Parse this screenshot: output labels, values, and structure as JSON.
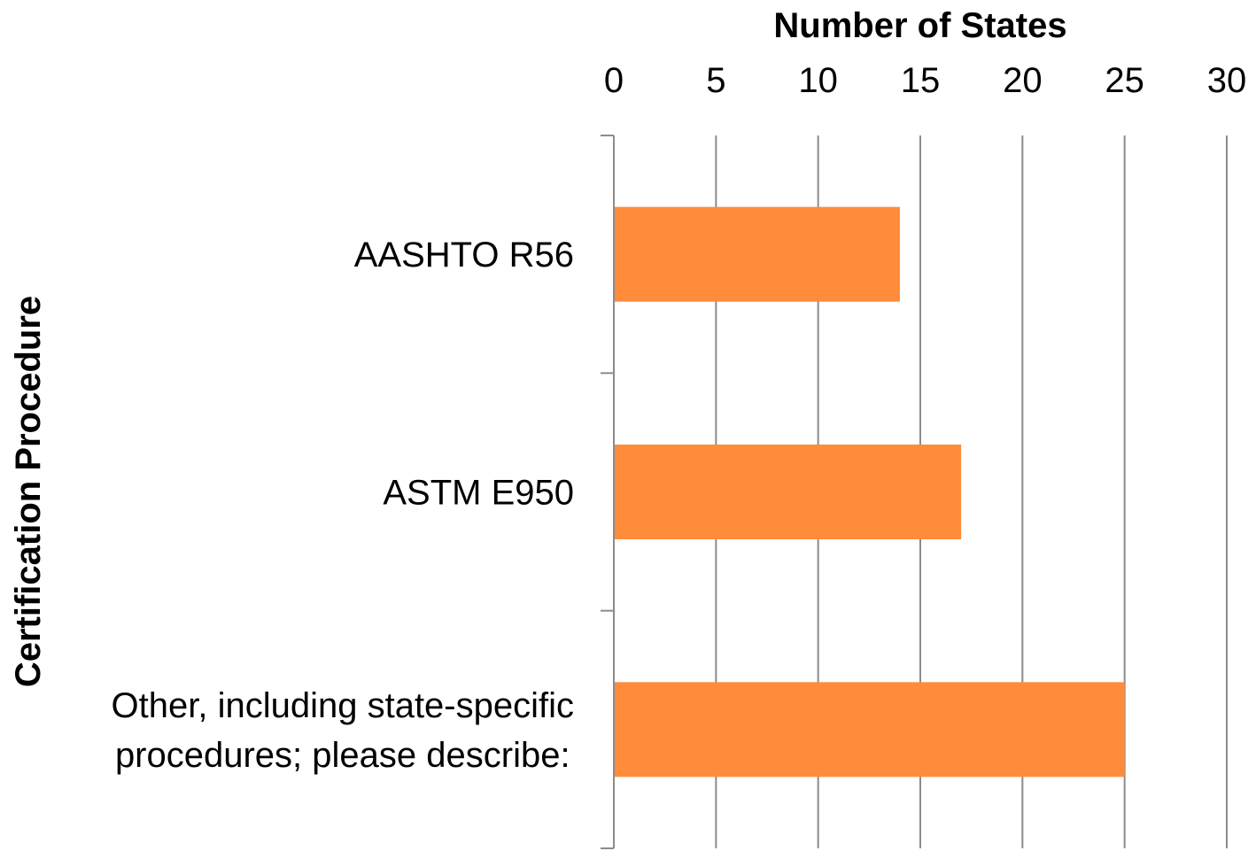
{
  "chart_data": {
    "type": "bar",
    "orientation": "horizontal",
    "x_axis_position": "top",
    "categories": [
      "AASHTO R56",
      "ASTM E950",
      "Other, including state-specific procedures; please describe:"
    ],
    "category_lines": [
      [
        "AASHTO R56"
      ],
      [
        "ASTM E950"
      ],
      [
        "Other, including state-specific",
        "procedures; please describe:"
      ]
    ],
    "values": [
      14,
      17,
      25
    ],
    "xlabel": "Number of States",
    "ylabel": "Certification Procedure",
    "xlim": [
      0,
      30
    ],
    "xticks": [
      "0",
      "5",
      "10",
      "15",
      "20",
      "25",
      "30"
    ],
    "grid": "vertical",
    "legend": "none",
    "colors": {
      "bar": "#FF8C3A",
      "grid": "#8C8C8C",
      "axis": "#8C8C8C",
      "text": "#000000"
    }
  }
}
